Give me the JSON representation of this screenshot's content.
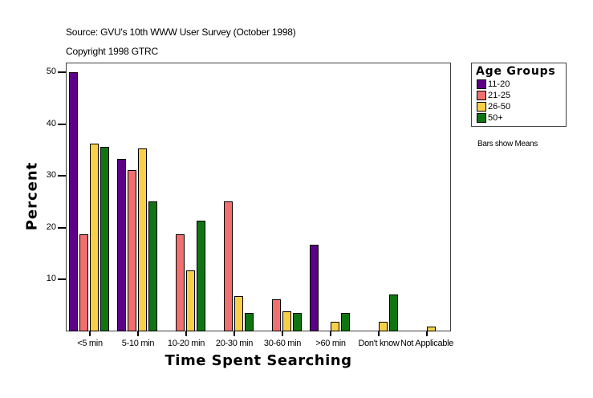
{
  "header": {
    "source": "Source: GVU's 10th WWW User Survey (October 1998)",
    "copyright": "Copyright 1998 GTRC"
  },
  "legend": {
    "title": "Age Groups",
    "items": [
      {
        "label": "11-20",
        "color": "#5c0087"
      },
      {
        "label": "21-25",
        "color": "#f07070"
      },
      {
        "label": "26-50",
        "color": "#f8d048"
      },
      {
        "label": "50+",
        "color": "#0f7510"
      }
    ]
  },
  "note": "Bars show Means",
  "axes": {
    "ylabel": "Percent",
    "xlabel": "Time Spent Searching",
    "yticks": [
      "10",
      "20",
      "30",
      "40",
      "50"
    ]
  },
  "chart_data": {
    "type": "bar",
    "title": "",
    "subtitle": "Source: GVU's 10th WWW User Survey (October 1998) / Copyright 1998 GTRC",
    "xlabel": "Time Spent Searching",
    "ylabel": "Percent",
    "ylim": [
      0,
      52
    ],
    "grid": false,
    "legend_position": "right",
    "legend_title": "Age Groups",
    "annotations": [
      "Bars show Means"
    ],
    "categories": [
      "<5 min",
      "5-10 min",
      "10-20 min",
      "20-30 min",
      "30-60 min",
      ">60 min",
      "Don't know",
      "Not Applicable"
    ],
    "series": [
      {
        "name": "11-20",
        "color": "#5c0087",
        "values": [
          50.0,
          33.3,
          null,
          null,
          null,
          16.7,
          null,
          null
        ]
      },
      {
        "name": "21-25",
        "color": "#f07070",
        "values": [
          18.7,
          31.1,
          18.7,
          25.0,
          6.2,
          null,
          null,
          null
        ]
      },
      {
        "name": "26-50",
        "color": "#f8d048",
        "values": [
          36.2,
          35.3,
          11.8,
          6.8,
          3.9,
          1.9,
          1.9,
          1.0
        ]
      },
      {
        "name": "50+",
        "color": "#0f7510",
        "values": [
          35.6,
          25.0,
          21.4,
          3.6,
          3.6,
          3.6,
          7.1,
          null
        ]
      }
    ]
  }
}
